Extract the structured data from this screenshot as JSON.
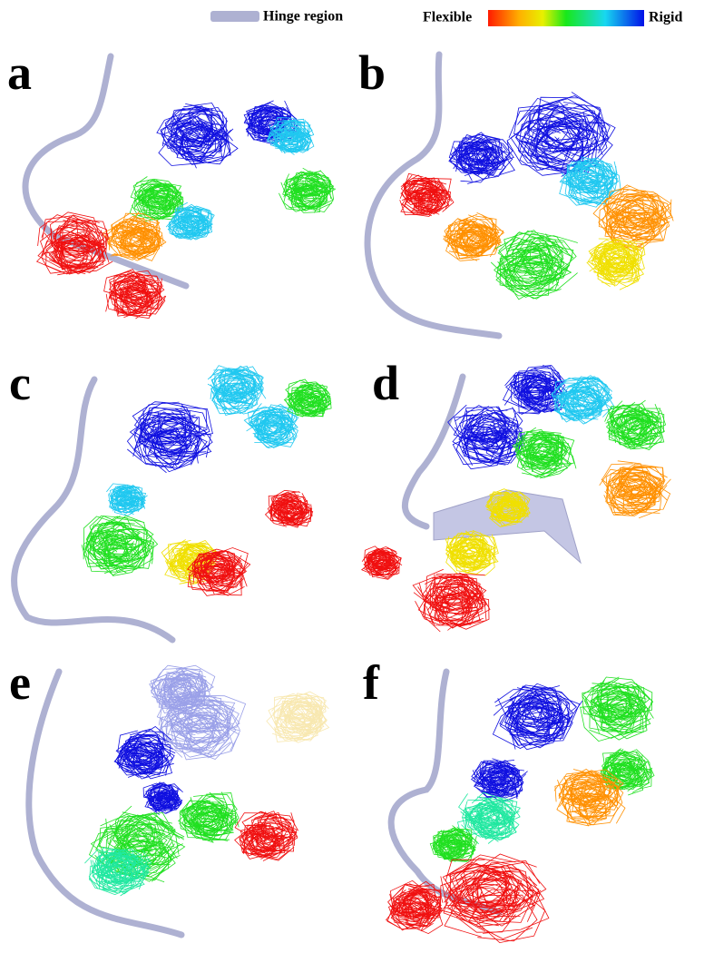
{
  "legend": {
    "hinge": "Hinge region",
    "flexible": "Flexible",
    "rigid": "Rigid"
  },
  "panels": [
    {
      "label": "a"
    },
    {
      "label": "b"
    },
    {
      "label": "c"
    },
    {
      "label": "d"
    },
    {
      "label": "e"
    },
    {
      "label": "f"
    }
  ]
}
